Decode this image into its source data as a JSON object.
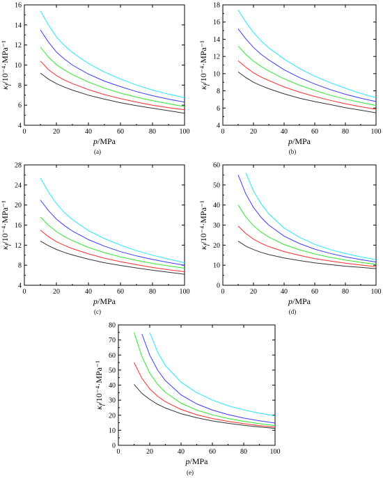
{
  "series_colors": [
    "#333333",
    "#ff2a2a",
    "#2ee82e",
    "#3a3aff",
    "#22e8ff"
  ],
  "chart_data": [
    {
      "type": "line",
      "panel_label": "(a)",
      "xlabel": "p/MPa",
      "ylabel": "κ_f/10⁻⁴·MPa⁻¹",
      "xlim": [
        0,
        100
      ],
      "ylim": [
        4,
        16
      ],
      "xticks": [
        0,
        20,
        40,
        60,
        80,
        100
      ],
      "yticks": [
        4,
        6,
        8,
        10,
        12,
        14,
        16
      ],
      "x": [
        10,
        15,
        20,
        25,
        30,
        40,
        50,
        60,
        70,
        80,
        90,
        100
      ],
      "series": [
        {
          "values": [
            9.2,
            8.6,
            8.15,
            7.8,
            7.5,
            7.0,
            6.6,
            6.25,
            5.95,
            5.7,
            5.45,
            5.2
          ]
        },
        {
          "values": [
            10.4,
            9.55,
            8.95,
            8.5,
            8.15,
            7.55,
            7.05,
            6.65,
            6.3,
            6.0,
            5.75,
            5.55
          ]
        },
        {
          "values": [
            11.8,
            10.8,
            10.05,
            9.5,
            9.05,
            8.3,
            7.7,
            7.2,
            6.8,
            6.45,
            6.15,
            5.85
          ]
        },
        {
          "values": [
            13.5,
            12.3,
            11.3,
            10.6,
            10.0,
            9.1,
            8.4,
            7.85,
            7.35,
            6.95,
            6.6,
            6.3
          ]
        },
        {
          "values": [
            15.4,
            14.0,
            12.8,
            11.95,
            11.25,
            10.15,
            9.3,
            8.6,
            8.0,
            7.5,
            7.1,
            6.75
          ]
        }
      ]
    },
    {
      "type": "line",
      "panel_label": "(b)",
      "xlabel": "p/MPa",
      "ylabel": "κ_f/10⁻⁴·MPa⁻¹",
      "xlim": [
        0,
        100
      ],
      "ylim": [
        4,
        18
      ],
      "xticks": [
        0,
        20,
        40,
        60,
        80,
        100
      ],
      "yticks": [
        4,
        6,
        8,
        10,
        12,
        14,
        16,
        18
      ],
      "x": [
        10,
        15,
        20,
        25,
        30,
        40,
        50,
        60,
        70,
        80,
        90,
        100
      ],
      "series": [
        {
          "values": [
            10.2,
            9.55,
            9.0,
            8.6,
            8.25,
            7.65,
            7.15,
            6.75,
            6.4,
            6.05,
            5.75,
            5.45
          ]
        },
        {
          "values": [
            11.5,
            10.75,
            10.1,
            9.6,
            9.2,
            8.45,
            7.85,
            7.35,
            6.9,
            6.5,
            6.15,
            5.85
          ]
        },
        {
          "values": [
            13.2,
            12.25,
            11.45,
            10.85,
            10.3,
            9.4,
            8.65,
            8.05,
            7.5,
            7.05,
            6.65,
            6.3
          ]
        },
        {
          "values": [
            15.2,
            14.05,
            13.05,
            12.25,
            11.6,
            10.45,
            9.55,
            8.8,
            8.15,
            7.6,
            7.15,
            6.75
          ]
        },
        {
          "values": [
            17.4,
            16.0,
            14.8,
            13.8,
            13.0,
            11.7,
            10.6,
            9.7,
            8.95,
            8.3,
            7.7,
            7.2
          ]
        }
      ]
    },
    {
      "type": "line",
      "panel_label": "(c)",
      "xlabel": "p/MPa",
      "ylabel": "κ_f/10⁻⁴·MPa⁻¹",
      "xlim": [
        0,
        100
      ],
      "ylim": [
        4,
        28
      ],
      "xticks": [
        0,
        20,
        40,
        60,
        80,
        100
      ],
      "yticks": [
        4,
        8,
        12,
        16,
        20,
        24,
        28
      ],
      "x": [
        10,
        15,
        20,
        25,
        30,
        40,
        50,
        60,
        70,
        80,
        90,
        100
      ],
      "series": [
        {
          "values": [
            12.8,
            11.9,
            11.15,
            10.55,
            10.05,
            9.2,
            8.5,
            7.95,
            7.45,
            7.0,
            6.6,
            6.2
          ]
        },
        {
          "values": [
            15.0,
            13.7,
            12.7,
            11.95,
            11.3,
            10.25,
            9.4,
            8.7,
            8.1,
            7.55,
            7.1,
            6.7
          ]
        },
        {
          "values": [
            17.6,
            16.0,
            14.7,
            13.7,
            12.9,
            11.55,
            10.5,
            9.65,
            8.95,
            8.35,
            7.85,
            7.4
          ]
        },
        {
          "values": [
            21.0,
            18.9,
            17.2,
            15.9,
            14.8,
            13.1,
            11.8,
            10.7,
            9.85,
            9.15,
            8.55,
            8.0
          ]
        },
        {
          "values": [
            25.4,
            22.6,
            20.3,
            18.5,
            17.1,
            14.9,
            13.3,
            12.0,
            10.9,
            10.0,
            9.2,
            8.5
          ]
        }
      ]
    },
    {
      "type": "line",
      "panel_label": "(d)",
      "xlabel": "p/MPa",
      "ylabel": "κ_f/10⁻⁴·MPa⁻¹",
      "xlim": [
        0,
        100
      ],
      "ylim": [
        0,
        60
      ],
      "xticks": [
        0,
        20,
        40,
        60,
        80,
        100
      ],
      "yticks": [
        0,
        10,
        20,
        30,
        40,
        50,
        60
      ],
      "x": [
        10,
        15,
        20,
        25,
        30,
        40,
        50,
        60,
        70,
        80,
        90,
        100
      ],
      "series": [
        {
          "values": [
            22.0,
            19.5,
            17.8,
            16.4,
            15.3,
            13.6,
            12.3,
            11.2,
            10.3,
            9.5,
            8.9,
            8.3
          ]
        },
        {
          "values": [
            29.5,
            25.8,
            23.0,
            20.9,
            19.3,
            16.8,
            14.9,
            13.3,
            12.1,
            11.0,
            10.1,
            9.3
          ]
        },
        {
          "values": [
            40.0,
            34.0,
            29.7,
            26.5,
            24.0,
            20.3,
            17.7,
            15.6,
            13.9,
            12.6,
            11.4,
            10.4
          ]
        },
        {
          "values": [
            55.0,
            45.5,
            38.8,
            33.8,
            30.0,
            24.5,
            20.8,
            18.0,
            15.9,
            14.2,
            12.8,
            11.6
          ]
        },
        {
          "values": [
            null,
            56.0,
            47.0,
            40.6,
            35.6,
            28.5,
            23.9,
            20.4,
            17.8,
            15.8,
            14.1,
            12.7
          ]
        }
      ]
    },
    {
      "type": "line",
      "panel_label": "(e)",
      "xlabel": "p/MPa",
      "ylabel": "κ_f/10⁻⁴·MPa⁻¹",
      "xlim": [
        0,
        100
      ],
      "ylim": [
        0,
        80
      ],
      "xticks": [
        0,
        20,
        40,
        60,
        80,
        100
      ],
      "yticks": [
        0,
        10,
        20,
        30,
        40,
        50,
        60,
        70,
        80
      ],
      "x": [
        10,
        15,
        20,
        25,
        30,
        40,
        50,
        60,
        70,
        80,
        90,
        100
      ],
      "series": [
        {
          "values": [
            40.5,
            34.5,
            30.5,
            27.3,
            24.8,
            21.0,
            18.3,
            16.2,
            14.6,
            13.3,
            12.2,
            11.2
          ]
        },
        {
          "values": [
            55.0,
            44.5,
            37.5,
            32.6,
            29.0,
            23.8,
            20.3,
            17.8,
            15.9,
            14.4,
            13.1,
            12.0
          ]
        },
        {
          "values": [
            75.0,
            59.0,
            48.0,
            40.5,
            35.2,
            28.0,
            23.4,
            20.2,
            17.8,
            15.9,
            14.4,
            13.1
          ]
        },
        {
          "values": [
            null,
            74.0,
            60.0,
            50.0,
            43.0,
            33.5,
            27.5,
            23.4,
            20.4,
            18.1,
            16.3,
            14.8
          ]
        },
        {
          "values": [
            null,
            null,
            75.0,
            62.0,
            53.0,
            42.0,
            35.0,
            30.0,
            26.3,
            23.5,
            21.3,
            19.5
          ]
        }
      ]
    }
  ]
}
